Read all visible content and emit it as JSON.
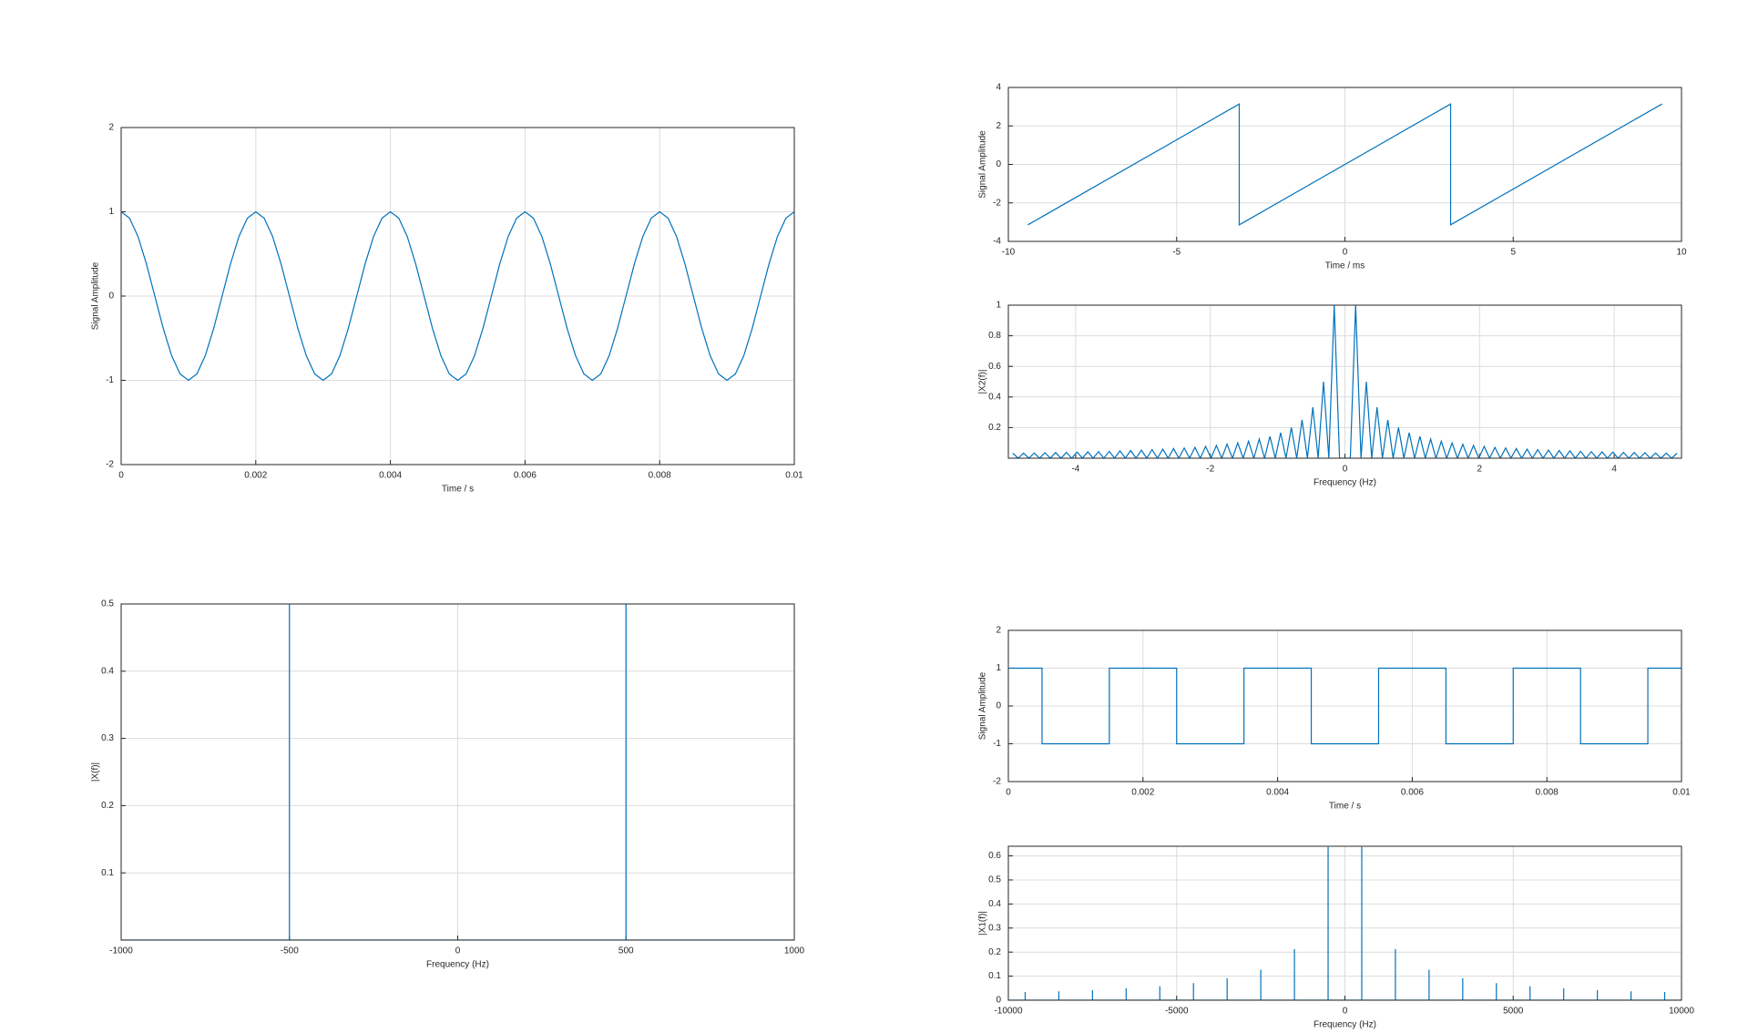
{
  "chart_data": [
    {
      "type": "line",
      "xlabel": "Time / s",
      "ylabel": "Signal Amplitude",
      "color": "#0072bd",
      "grid": true,
      "xlim": [
        0,
        0.01
      ],
      "ylim": [
        -2,
        2
      ],
      "xticks": [
        0,
        0.002,
        0.004,
        0.006,
        0.008,
        0.01
      ],
      "yticks": [
        -2,
        -1,
        0,
        1,
        2
      ],
      "x": [
        0,
        0.000125,
        0.00025,
        0.000375,
        0.0005,
        0.000625,
        0.00075,
        0.000875,
        0.001,
        0.001125,
        0.00125,
        0.001375,
        0.0015,
        0.001625,
        0.00175,
        0.001875,
        0.002,
        0.002125,
        0.00225,
        0.002375,
        0.0025,
        0.002625,
        0.00275,
        0.002875,
        0.003,
        0.003125,
        0.00325,
        0.003375,
        0.0035,
        0.003625,
        0.00375,
        0.003875,
        0.004,
        0.004125,
        0.00425,
        0.004375,
        0.0045,
        0.004625,
        0.00475,
        0.004875,
        0.005,
        0.005125,
        0.00525,
        0.005375,
        0.0055,
        0.005625,
        0.00575,
        0.005875,
        0.006,
        0.006125,
        0.00625,
        0.006375,
        0.0065,
        0.006625,
        0.00675,
        0.006875,
        0.007,
        0.007125,
        0.00725,
        0.007375,
        0.0075,
        0.007625,
        0.00775,
        0.007875,
        0.008,
        0.008125,
        0.00825,
        0.008375,
        0.0085,
        0.008625,
        0.00875,
        0.008875,
        0.009,
        0.009125,
        0.00925,
        0.009375,
        0.0095,
        0.009625,
        0.00975,
        0.009875,
        0.01
      ],
      "values": [
        1,
        0.924,
        0.707,
        0.383,
        0,
        -0.383,
        -0.707,
        -0.924,
        -1,
        -0.924,
        -0.707,
        -0.383,
        0,
        0.383,
        0.707,
        0.924,
        1,
        0.924,
        0.707,
        0.383,
        0,
        -0.383,
        -0.707,
        -0.924,
        -1,
        -0.924,
        -0.707,
        -0.383,
        0,
        0.383,
        0.707,
        0.924,
        1,
        0.924,
        0.707,
        0.383,
        0,
        -0.383,
        -0.707,
        -0.924,
        -1,
        -0.924,
        -0.707,
        -0.383,
        0,
        0.383,
        0.707,
        0.924,
        1,
        0.924,
        0.707,
        0.383,
        0,
        -0.383,
        -0.707,
        -0.924,
        -1,
        -0.924,
        -0.707,
        -0.383,
        0,
        0.383,
        0.707,
        0.924,
        1,
        0.924,
        0.707,
        0.383,
        0,
        -0.383,
        -0.707,
        -0.924,
        -1,
        -0.924,
        -0.707,
        -0.383,
        0,
        0.383,
        0.707,
        0.924,
        1
      ]
    },
    {
      "type": "stem",
      "xlabel": "Frequency (Hz)",
      "ylabel": "|X(f)|",
      "color": "#0072bd",
      "grid": true,
      "xlim": [
        -1000,
        1000
      ],
      "ylim": [
        0,
        0.5
      ],
      "xticks": [
        -1000,
        -500,
        0,
        500,
        1000
      ],
      "yticks": [
        0.1,
        0.2,
        0.3,
        0.4,
        0.5
      ],
      "x": [
        -500,
        500
      ],
      "values": [
        0.5,
        0.5
      ]
    },
    {
      "type": "line",
      "xlabel": "Time / ms",
      "ylabel": "Signal Amplitude",
      "color": "#0072bd",
      "grid": true,
      "xlim": [
        -10,
        10
      ],
      "ylim": [
        -4,
        4
      ],
      "xticks": [
        -10,
        -5,
        0,
        5,
        10
      ],
      "yticks": [
        -4,
        -2,
        0,
        2,
        4
      ],
      "x": [
        -9.42,
        -3.14,
        -3.14,
        3.14,
        3.14,
        9.42
      ],
      "values": [
        -3.14,
        3.14,
        -3.14,
        3.14,
        -3.14,
        3.14
      ]
    },
    {
      "type": "line",
      "xlabel": "Frequency (Hz)",
      "ylabel": "|X2(f)|",
      "color": "#0072bd",
      "grid": true,
      "xlim": [
        -5,
        5
      ],
      "ylim": [
        0,
        1
      ],
      "xticks": [
        -4,
        -2,
        0,
        2,
        4
      ],
      "yticks": [
        0.2,
        0.4,
        0.6,
        0.8,
        1
      ],
      "x": [
        -4.934,
        -4.854,
        -4.775,
        -4.695,
        -4.615,
        -4.536,
        -4.456,
        -4.377,
        -4.297,
        -4.217,
        -4.138,
        -4.058,
        -3.979,
        -3.899,
        -3.82,
        -3.74,
        -3.66,
        -3.581,
        -3.501,
        -3.422,
        -3.342,
        -3.263,
        -3.183,
        -3.103,
        -3.024,
        -2.944,
        -2.865,
        -2.785,
        -2.706,
        -2.626,
        -2.546,
        -2.467,
        -2.387,
        -2.308,
        -2.228,
        -2.149,
        -2.069,
        -1.989,
        -1.91,
        -1.83,
        -1.751,
        -1.671,
        -1.592,
        -1.512,
        -1.432,
        -1.353,
        -1.273,
        -1.194,
        -1.114,
        -1.035,
        -0.955,
        -0.876,
        -0.796,
        -0.716,
        -0.637,
        -0.557,
        -0.477,
        -0.398,
        -0.318,
        -0.239,
        -0.159,
        -0.08,
        0,
        0.08,
        0.159,
        0.239,
        0.318,
        0.398,
        0.477,
        0.557,
        0.637,
        0.716,
        0.796,
        0.876,
        0.955,
        1.035,
        1.114,
        1.194,
        1.273,
        1.353,
        1.432,
        1.512,
        1.592,
        1.671,
        1.751,
        1.83,
        1.91,
        1.989,
        2.069,
        2.149,
        2.228,
        2.308,
        2.387,
        2.467,
        2.546,
        2.626,
        2.706,
        2.785,
        2.865,
        2.944,
        3.024,
        3.103,
        3.183,
        3.263,
        3.342,
        3.422,
        3.501,
        3.581,
        3.66,
        3.74,
        3.82,
        3.899,
        3.979,
        4.058,
        4.138,
        4.217,
        4.297,
        4.377,
        4.456,
        4.536,
        4.615,
        4.695,
        4.775,
        4.854,
        4.934
      ],
      "values": [
        0.032,
        0,
        0.033,
        0,
        0.034,
        0,
        0.036,
        0,
        0.037,
        0,
        0.038,
        0,
        0.04,
        0,
        0.042,
        0,
        0.043,
        0,
        0.045,
        0,
        0.048,
        0,
        0.05,
        0,
        0.053,
        0,
        0.056,
        0,
        0.059,
        0,
        0.063,
        0,
        0.067,
        0,
        0.071,
        0,
        0.077,
        0,
        0.083,
        0,
        0.091,
        0,
        0.1,
        0,
        0.111,
        0,
        0.125,
        0,
        0.143,
        0,
        0.167,
        0,
        0.2,
        0,
        0.25,
        0,
        0.333,
        0,
        0.5,
        0,
        1,
        0,
        0,
        0,
        1,
        0,
        0.5,
        0,
        0.333,
        0,
        0.25,
        0,
        0.2,
        0,
        0.167,
        0,
        0.143,
        0,
        0.125,
        0,
        0.111,
        0,
        0.1,
        0,
        0.091,
        0,
        0.083,
        0,
        0.077,
        0,
        0.071,
        0,
        0.067,
        0,
        0.063,
        0,
        0.059,
        0,
        0.056,
        0,
        0.053,
        0,
        0.05,
        0,
        0.048,
        0,
        0.045,
        0,
        0.043,
        0,
        0.042,
        0,
        0.04,
        0,
        0.038,
        0,
        0.037,
        0,
        0.036,
        0,
        0.034,
        0,
        0.033,
        0,
        0.032
      ]
    },
    {
      "type": "line",
      "xlabel": "Time / s",
      "ylabel": "Signal Amplitude",
      "color": "#0072bd",
      "grid": true,
      "xlim": [
        0,
        0.01
      ],
      "ylim": [
        -2,
        2
      ],
      "xticks": [
        0,
        0.002,
        0.004,
        0.006,
        0.008,
        0.01
      ],
      "yticks": [
        -2,
        -1,
        0,
        1,
        2
      ],
      "x": [
        0,
        0.0005,
        0.0005,
        0.0015,
        0.0015,
        0.0025,
        0.0025,
        0.0035,
        0.0035,
        0.0045,
        0.0045,
        0.0055,
        0.0055,
        0.0065,
        0.0065,
        0.0075,
        0.0075,
        0.0085,
        0.0085,
        0.0095,
        0.0095,
        0.01
      ],
      "values": [
        1,
        1,
        -1,
        -1,
        1,
        1,
        -1,
        -1,
        1,
        1,
        -1,
        -1,
        1,
        1,
        -1,
        -1,
        1,
        1,
        -1,
        -1,
        1,
        1
      ]
    },
    {
      "type": "stem",
      "xlabel": "Frequency (Hz)",
      "ylabel": "|X1(f)|",
      "color": "#0072bd",
      "grid": true,
      "xlim": [
        -10000,
        10000
      ],
      "ylim": [
        0,
        0.64
      ],
      "xticks": [
        -10000,
        -5000,
        0,
        5000,
        10000
      ],
      "yticks": [
        0,
        0.1,
        0.2,
        0.3,
        0.4,
        0.5,
        0.6
      ],
      "x": [
        -9500,
        -8500,
        -7500,
        -6500,
        -5500,
        -4500,
        -3500,
        -2500,
        -1500,
        -500,
        500,
        1500,
        2500,
        3500,
        4500,
        5500,
        6500,
        7500,
        8500,
        9500
      ],
      "values": [
        0.034,
        0.037,
        0.042,
        0.049,
        0.058,
        0.071,
        0.091,
        0.127,
        0.212,
        0.637,
        0.637,
        0.212,
        0.127,
        0.091,
        0.071,
        0.058,
        0.049,
        0.042,
        0.037,
        0.034
      ]
    }
  ]
}
